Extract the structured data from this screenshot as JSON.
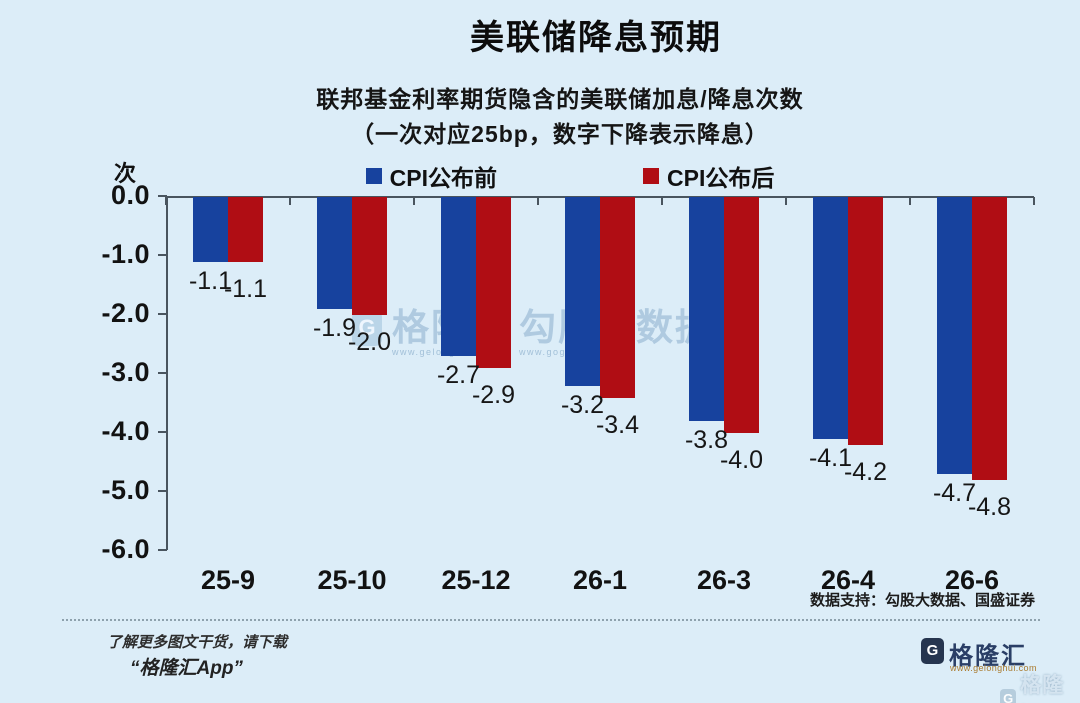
{
  "title": "美联储降息预期",
  "subtitle": {
    "line1": "联邦基金利率期货隐含的美联储加息/降息次数",
    "line2": "（一次对应25bp，数字下降表示降息）"
  },
  "unit_label": "次",
  "legend": {
    "before": {
      "label": "CPI公布前",
      "color": "#17429e"
    },
    "after": {
      "label": "CPI公布后",
      "color": "#b00d14"
    }
  },
  "chart_data": {
    "type": "bar",
    "categories": [
      "25-9",
      "25-10",
      "25-12",
      "26-1",
      "26-3",
      "26-4",
      "26-6"
    ],
    "series": [
      {
        "name": "CPI公布前",
        "color": "#17429e",
        "values": [
          -1.1,
          -1.9,
          -2.7,
          -3.2,
          -3.8,
          -4.1,
          -4.7
        ]
      },
      {
        "name": "CPI公布后",
        "color": "#b00d14",
        "values": [
          -1.1,
          -2.0,
          -2.9,
          -3.4,
          -4.0,
          -4.2,
          -4.8
        ]
      }
    ],
    "title": "联邦基金利率期货隐含的美联储加息/降息次数",
    "xlabel": "",
    "ylabel": "次",
    "ylim": [
      -6.0,
      0.0
    ],
    "ytick_labels": [
      "0.0",
      "-1.0",
      "-2.0",
      "-3.0",
      "-4.0",
      "-5.0",
      "-6.0"
    ],
    "grid": false,
    "legend_position": "top",
    "data_labels": true
  },
  "watermark": {
    "logo_letter": "G",
    "brand": "格隆汇",
    "brand_url": "www.gelonghui.com",
    "product": "勾股大数据",
    "product_url": "www.gogudata.com"
  },
  "footer": {
    "data_support": "数据支持：勾股大数据、国盛证券",
    "promo_line1": "了解更多图文干货，请下载",
    "promo_line2": "“格隆汇App”",
    "brand_logo_letter": "G",
    "brand_name": "格隆汇",
    "brand_url": "www.gelonghui.com",
    "corner_logo_letter": "G",
    "corner_watermark": "格隆汇"
  }
}
